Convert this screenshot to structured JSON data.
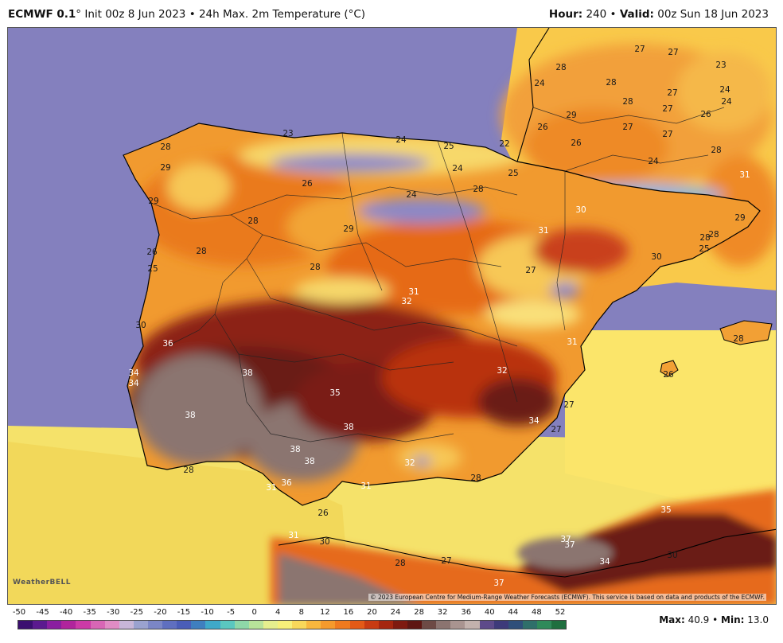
{
  "header": {
    "model": "ECMWF 0.1",
    "degree_sign": "°",
    "init": "Init 00z 8 Jun 2023",
    "sep": "•",
    "product": "24h Max. 2m Temperature (°C)",
    "hour_label": "Hour:",
    "hour_value": "240",
    "valid_label": "Valid:",
    "valid_value": "00z Sun 18 Jun 2023"
  },
  "map": {
    "copyright": "© 2023 European Centre for Medium-Range Weather Forecasts (ECMWF). This service is based on data and products of the ECMWF.",
    "logo_text": "WeatherBELL",
    "labels": [
      {
        "t": "28",
        "c": "d"
      },
      {
        "t": "29",
        "c": "d"
      },
      {
        "t": "29",
        "c": "d"
      },
      {
        "t": "23",
        "c": "d"
      },
      {
        "t": "24",
        "c": "d"
      },
      {
        "t": "25",
        "c": "d"
      },
      {
        "t": "22",
        "c": "d"
      },
      {
        "t": "24",
        "c": "d"
      },
      {
        "t": "25",
        "c": "d"
      },
      {
        "t": "26",
        "c": "d"
      },
      {
        "t": "28",
        "c": "d"
      },
      {
        "t": "24",
        "c": "d"
      },
      {
        "t": "30",
        "c": "w"
      },
      {
        "t": "31",
        "c": "w"
      },
      {
        "t": "28",
        "c": "d"
      },
      {
        "t": "29",
        "c": "d"
      },
      {
        "t": "28",
        "c": "d"
      },
      {
        "t": "26",
        "c": "d"
      },
      {
        "t": "25",
        "c": "d"
      },
      {
        "t": "28",
        "c": "d"
      },
      {
        "t": "27",
        "c": "d"
      },
      {
        "t": "31",
        "c": "w"
      },
      {
        "t": "32",
        "c": "w"
      },
      {
        "t": "30",
        "c": "d"
      },
      {
        "t": "36",
        "c": "w"
      },
      {
        "t": "34",
        "c": "w"
      },
      {
        "t": "34",
        "c": "w"
      },
      {
        "t": "38",
        "c": "w"
      },
      {
        "t": "35",
        "c": "w"
      },
      {
        "t": "38",
        "c": "w"
      },
      {
        "t": "38",
        "c": "w"
      },
      {
        "t": "38",
        "c": "w"
      },
      {
        "t": "38",
        "c": "w"
      },
      {
        "t": "28",
        "c": "d"
      },
      {
        "t": "31",
        "c": "w"
      },
      {
        "t": "36",
        "c": "w"
      },
      {
        "t": "31",
        "c": "w"
      },
      {
        "t": "32",
        "c": "w"
      },
      {
        "t": "28",
        "c": "d"
      },
      {
        "t": "26",
        "c": "d"
      },
      {
        "t": "31",
        "c": "w"
      },
      {
        "t": "32",
        "c": "w"
      },
      {
        "t": "34",
        "c": "w"
      },
      {
        "t": "27",
        "c": "d"
      },
      {
        "t": "27",
        "c": "d"
      },
      {
        "t": "31",
        "c": "w"
      },
      {
        "t": "30",
        "c": "d"
      },
      {
        "t": "27",
        "c": "d"
      },
      {
        "t": "28",
        "c": "d"
      },
      {
        "t": "37",
        "c": "w"
      },
      {
        "t": "37",
        "c": "w"
      },
      {
        "t": "37",
        "c": "w"
      },
      {
        "t": "34",
        "c": "w"
      },
      {
        "t": "35",
        "c": "w"
      },
      {
        "t": "30",
        "c": "d"
      },
      {
        "t": "28",
        "c": "d"
      },
      {
        "t": "26",
        "c": "d"
      },
      {
        "t": "31",
        "c": "w"
      },
      {
        "t": "29",
        "c": "d"
      },
      {
        "t": "28",
        "c": "d"
      },
      {
        "t": "28",
        "c": "d"
      },
      {
        "t": "25",
        "c": "d"
      },
      {
        "t": "30",
        "c": "d"
      },
      {
        "t": "28",
        "c": "d"
      },
      {
        "t": "27",
        "c": "d"
      },
      {
        "t": "27",
        "c": "d"
      },
      {
        "t": "23",
        "c": "d"
      },
      {
        "t": "24",
        "c": "d"
      },
      {
        "t": "24",
        "c": "d"
      },
      {
        "t": "28",
        "c": "d"
      },
      {
        "t": "27",
        "c": "d"
      },
      {
        "t": "28",
        "c": "d"
      },
      {
        "t": "27",
        "c": "d"
      },
      {
        "t": "29",
        "c": "d"
      },
      {
        "t": "26",
        "c": "d"
      },
      {
        "t": "27",
        "c": "d"
      },
      {
        "t": "26",
        "c": "d"
      },
      {
        "t": "27",
        "c": "d"
      },
      {
        "t": "28",
        "c": "d"
      },
      {
        "t": "24",
        "c": "d"
      },
      {
        "t": "24",
        "c": "d"
      },
      {
        "t": "26",
        "c": "d"
      }
    ]
  },
  "scale": {
    "ticks": [
      "-50",
      "-45",
      "-40",
      "-35",
      "-30",
      "-25",
      "-20",
      "-15",
      "-10",
      "-5",
      "0",
      "4",
      "8",
      "12",
      "16",
      "20",
      "24",
      "28",
      "32",
      "36",
      "40",
      "44",
      "48",
      "52"
    ],
    "colors": [
      "#3b0f70",
      "#5b1a8f",
      "#8a1fa0",
      "#b0249c",
      "#cc3aa7",
      "#d866b5",
      "#e08cc4",
      "#c8b6d8",
      "#9aa2cf",
      "#7b86c6",
      "#5f6fc0",
      "#4a5db8",
      "#3f7fbf",
      "#3fa9c9",
      "#5ac7c0",
      "#8ed7a8",
      "#b8e39a",
      "#e6ef8e",
      "#f7f07a",
      "#f9d85a",
      "#f8b73e",
      "#f59a2c",
      "#ef7a1f",
      "#e35a17",
      "#c83b12",
      "#a5260f",
      "#7e1a10",
      "#5e1612",
      "#6d4a45",
      "#8b7470",
      "#a99490",
      "#c3b2ad",
      "#5d4a8a",
      "#3d3a7a",
      "#2f4f7a",
      "#2f6f6a",
      "#2f8a5a",
      "#1f6f3f"
    ]
  },
  "stats": {
    "max_label": "Max:",
    "max_value": "40.9",
    "sep": "•",
    "min_label": "Min:",
    "min_value": "13.0"
  }
}
